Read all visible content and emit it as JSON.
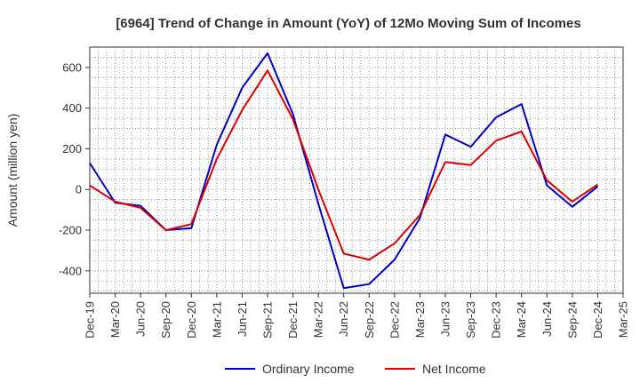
{
  "chart_data": {
    "type": "line",
    "title": "[6964]  Trend of Change in Amount (YoY) of 12Mo Moving Sum of Incomes",
    "ylabel": "Amount (million yen)",
    "xlabel": "",
    "ylim": [
      -510,
      700
    ],
    "yticks": [
      -400,
      -200,
      0,
      200,
      400,
      600
    ],
    "x": [
      "Dec-19",
      "Mar-20",
      "Jun-20",
      "Sep-20",
      "Dec-20",
      "Mar-21",
      "Jun-21",
      "Sep-21",
      "Dec-21",
      "Mar-22",
      "Jun-22",
      "Sep-22",
      "Dec-22",
      "Mar-23",
      "Jun-23",
      "Sep-23",
      "Dec-23",
      "Mar-24",
      "Jun-24",
      "Sep-24",
      "Dec-24",
      "Mar-25"
    ],
    "grid": true,
    "legend_position": "bottom",
    "series": [
      {
        "name": "Ordinary Income",
        "color": "#0000cc",
        "values": [
          130,
          -65,
          -80,
          -200,
          -190,
          220,
          500,
          670,
          370,
          -70,
          -485,
          -465,
          -345,
          -140,
          270,
          210,
          355,
          420,
          20,
          -85,
          15,
          null
        ]
      },
      {
        "name": "Net Income",
        "color": "#dd0000",
        "values": [
          20,
          -60,
          -90,
          -200,
          -170,
          150,
          390,
          585,
          345,
          0,
          -315,
          -345,
          -265,
          -125,
          135,
          120,
          240,
          285,
          45,
          -60,
          25,
          null
        ]
      }
    ]
  }
}
